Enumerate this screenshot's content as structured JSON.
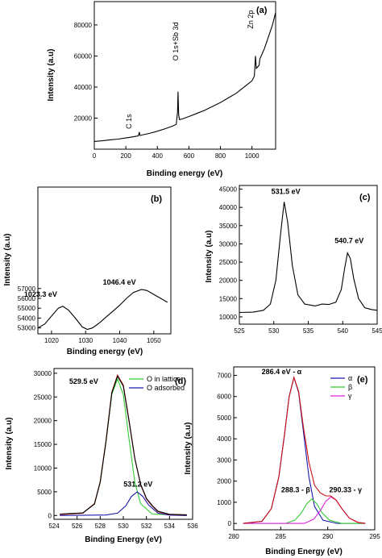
{
  "chart_data": [
    {
      "panel": "(a)",
      "type": "line",
      "xlabel": "Binding energy (eV)",
      "ylabel": "Intensity (a.u)",
      "xlim": [
        0,
        1150
      ],
      "ylim": [
        0,
        95000
      ],
      "xticks": [
        "0",
        "200",
        "400",
        "600",
        "800",
        "1000"
      ],
      "xtick_values": [
        0,
        200,
        400,
        600,
        800,
        1000
      ],
      "yticks": [
        "20000",
        "40000",
        "60000",
        "80000"
      ],
      "ytick_values": [
        20000,
        40000,
        60000,
        80000
      ],
      "annotations": [
        {
          "text": "C 1s",
          "x": 285,
          "y": 12000,
          "rotated": true
        },
        {
          "text": "O 1s+Sb 3d",
          "x": 531,
          "y": 30000,
          "rotated": true
        },
        {
          "text": "Zn 2p",
          "x": 1022,
          "y": 62000,
          "rotated": true
        }
      ],
      "series": [
        {
          "color": "#000000",
          "x": [
            0,
            50,
            100,
            150,
            200,
            250,
            280,
            285,
            290,
            300,
            350,
            400,
            450,
            500,
            520,
            528,
            531,
            535,
            540,
            560,
            600,
            650,
            700,
            750,
            800,
            850,
            900,
            950,
            1000,
            1015,
            1022,
            1028,
            1045,
            1050,
            1080,
            1100,
            1130,
            1150
          ],
          "y": [
            5000,
            5400,
            6000,
            6500,
            7200,
            8000,
            8600,
            11000,
            8800,
            9100,
            10200,
            11600,
            13200,
            15000,
            16000,
            24000,
            37000,
            22000,
            19000,
            19500,
            21000,
            23000,
            25000,
            27500,
            30000,
            33000,
            36000,
            40000,
            44000,
            47000,
            60000,
            52000,
            54000,
            58000,
            65000,
            71000,
            80000,
            88000
          ]
        }
      ]
    },
    {
      "panel": "(b)",
      "type": "line",
      "xlabel": "Binding energy (eV)",
      "ylabel": "Intensity (a.u)",
      "xlim": [
        1016,
        1055
      ],
      "ylim": [
        52400,
        67300
      ],
      "xticks": [
        "1020",
        "1030",
        "1040",
        "1050"
      ],
      "xtick_values": [
        1020,
        1030,
        1040,
        1050
      ],
      "yticks": [
        "53000",
        "54000",
        "55000",
        "56000",
        "57000"
      ],
      "ytick_values": [
        53000,
        54000,
        55000,
        56000,
        57000
      ],
      "annotations": [
        {
          "text": "1023.3 eV",
          "x": 1023.3,
          "y": 55200
        },
        {
          "text": "1046.4 eV",
          "x": 1046.4,
          "y": 56900
        }
      ],
      "series": [
        {
          "color": "#000000",
          "x": [
            1016,
            1018,
            1020,
            1022,
            1023.3,
            1025,
            1027,
            1029,
            1030.5,
            1032,
            1034,
            1036,
            1038,
            1040,
            1042,
            1044,
            1046.4,
            1048,
            1050,
            1052,
            1054
          ],
          "y": [
            53000,
            53400,
            54200,
            55000,
            55200,
            54800,
            54000,
            53100,
            52850,
            53000,
            53500,
            54100,
            54700,
            55300,
            56000,
            56600,
            56900,
            56800,
            56400,
            56000,
            55600
          ]
        }
      ]
    },
    {
      "panel": "(c)",
      "type": "line",
      "xlabel": "",
      "ylabel": "Intensity (a.u)",
      "xlim": [
        525,
        545
      ],
      "ylim": [
        8000,
        46000
      ],
      "xticks": [
        "525",
        "530",
        "535",
        "540",
        "545"
      ],
      "xtick_values": [
        525,
        530,
        535,
        540,
        545
      ],
      "yticks": [
        "10000",
        "15000",
        "20000",
        "25000",
        "30000",
        "35000",
        "40000",
        "45000"
      ],
      "ytick_values": [
        10000,
        15000,
        20000,
        25000,
        30000,
        35000,
        40000,
        45000
      ],
      "annotations": [
        {
          "text": "531.5 eV",
          "x": 531.5,
          "y": 41500
        },
        {
          "text": "540.7 eV",
          "x": 540.7,
          "y": 27500
        }
      ],
      "series": [
        {
          "color": "#000000",
          "x": [
            525,
            527,
            528.5,
            529.5,
            530.3,
            531,
            531.5,
            532,
            532.7,
            533.5,
            534.5,
            536,
            537,
            538,
            539,
            539.8,
            540.3,
            540.7,
            541.1,
            541.6,
            542.3,
            543.2,
            544.2,
            545
          ],
          "y": [
            11200,
            11300,
            11800,
            13500,
            20000,
            33000,
            41500,
            36000,
            24000,
            16000,
            13500,
            13000,
            13500,
            13400,
            14000,
            17500,
            23500,
            27500,
            26000,
            20500,
            15000,
            12500,
            12000,
            11800
          ]
        }
      ]
    },
    {
      "panel": "(d)",
      "type": "line",
      "xlabel": "Binding Energy (eV)",
      "ylabel": "Intensity (a.u)",
      "xlim": [
        524,
        536
      ],
      "ylim": [
        -800,
        31000
      ],
      "xticks": [
        "524",
        "526",
        "528",
        "530",
        "532",
        "534",
        "536"
      ],
      "xtick_values": [
        524,
        526,
        528,
        530,
        532,
        534,
        536
      ],
      "yticks": [
        "0",
        "5000",
        "10000",
        "15000",
        "20000",
        "25000",
        "30000"
      ],
      "ytick_values": [
        0,
        5000,
        10000,
        15000,
        20000,
        25000,
        30000
      ],
      "legend": "top-right",
      "annotations": [
        {
          "text": "529.5 eV",
          "x": 529.5,
          "y": 28800
        },
        {
          "text": "531.2 eV",
          "x": 531.2,
          "y": 5100
        }
      ],
      "series": [
        {
          "name": "O in lattice",
          "color": "#33cc33",
          "x": [
            524.5,
            526.5,
            527.5,
            528,
            528.5,
            529,
            529.5,
            530,
            530.5,
            531,
            531.5,
            532.5,
            535.5
          ],
          "y": [
            200,
            500,
            2500,
            7000,
            15500,
            25500,
            28800,
            25500,
            16000,
            7000,
            2500,
            300,
            0
          ]
        },
        {
          "name": "O adsorbed",
          "color": "#1a1aaa",
          "x": [
            524.5,
            528.5,
            529.5,
            530.2,
            530.7,
            531.2,
            531.7,
            532.2,
            533,
            534,
            535.5
          ],
          "y": [
            0,
            100,
            500,
            2000,
            4000,
            5000,
            4000,
            2200,
            500,
            80,
            0
          ]
        },
        {
          "color": "#cc1111",
          "x": [
            524.5,
            526.5,
            527.5,
            528,
            528.5,
            529,
            529.5,
            530,
            530.5,
            531,
            531.5,
            532,
            532.5,
            533,
            534,
            535.5
          ],
          "y": [
            200,
            500,
            2500,
            7100,
            15700,
            26000,
            29600,
            27500,
            20000,
            12000,
            6500,
            3500,
            2000,
            800,
            200,
            100
          ]
        },
        {
          "color": "#000000",
          "x": [
            524.5,
            526.5,
            527.5,
            528,
            528.5,
            529,
            529.5,
            530,
            530.5,
            531,
            531.5,
            532,
            532.5,
            533,
            534,
            535.5
          ],
          "y": [
            300,
            550,
            2400,
            7000,
            15600,
            25800,
            29400,
            27300,
            19800,
            12000,
            6600,
            3600,
            2100,
            900,
            250,
            150
          ]
        }
      ]
    },
    {
      "panel": "(e)",
      "type": "line",
      "xlabel": "Binding Energy (eV)",
      "ylabel": "Intensity (a.u)",
      "xlim": [
        280,
        295
      ],
      "ylim": [
        -300,
        7400
      ],
      "xticks": [
        "280",
        "285",
        "290",
        "295"
      ],
      "xtick_values": [
        280,
        285,
        290,
        295
      ],
      "yticks": [
        "0",
        "1000",
        "2000",
        "3000",
        "4000",
        "5000",
        "6000",
        "7000"
      ],
      "ytick_values": [
        0,
        1000,
        2000,
        3000,
        4000,
        5000,
        6000,
        7000
      ],
      "legend": "top-right",
      "annotations": [
        {
          "text": "286.4 eV - α",
          "x": 286.4,
          "y": 6900
        },
        {
          "text": "288.3 - β",
          "x": 288.3,
          "y": 1200
        },
        {
          "text": "290.33 - γ",
          "x": 290.33,
          "y": 1250
        }
      ],
      "series": [
        {
          "name": "α",
          "color": "#1a1aaa",
          "x": [
            281,
            283,
            284,
            284.8,
            285.4,
            285.9,
            286.4,
            286.9,
            287.4,
            288,
            288.6,
            289.5,
            291,
            294
          ],
          "y": [
            0,
            100,
            700,
            2200,
            4200,
            6000,
            6900,
            6200,
            4400,
            2200,
            800,
            150,
            0,
            0
          ]
        },
        {
          "name": "β",
          "color": "#33cc33",
          "x": [
            281,
            285.5,
            286.5,
            287.2,
            287.8,
            288.3,
            288.8,
            289.4,
            290.2,
            291.5,
            294
          ],
          "y": [
            0,
            0,
            150,
            500,
            950,
            1150,
            950,
            500,
            150,
            0,
            0
          ]
        },
        {
          "name": "γ",
          "color": "#dd22dd",
          "x": [
            281,
            287.5,
            288.5,
            289.2,
            289.8,
            290.33,
            290.9,
            291.5,
            292.3,
            293.2,
            294
          ],
          "y": [
            0,
            0,
            200,
            600,
            1050,
            1250,
            1100,
            700,
            250,
            50,
            0
          ]
        },
        {
          "color": "#cc1111",
          "x": [
            281,
            283,
            284,
            284.8,
            285.4,
            285.9,
            286.4,
            286.9,
            287.4,
            288,
            288.6,
            289.2,
            289.8,
            290.33,
            290.9,
            291.5,
            292.3,
            293.2,
            294
          ],
          "y": [
            0,
            100,
            700,
            2200,
            4200,
            6000,
            6900,
            6250,
            4600,
            2900,
            1800,
            1450,
            1300,
            1300,
            1100,
            700,
            250,
            50,
            0
          ]
        }
      ]
    }
  ]
}
